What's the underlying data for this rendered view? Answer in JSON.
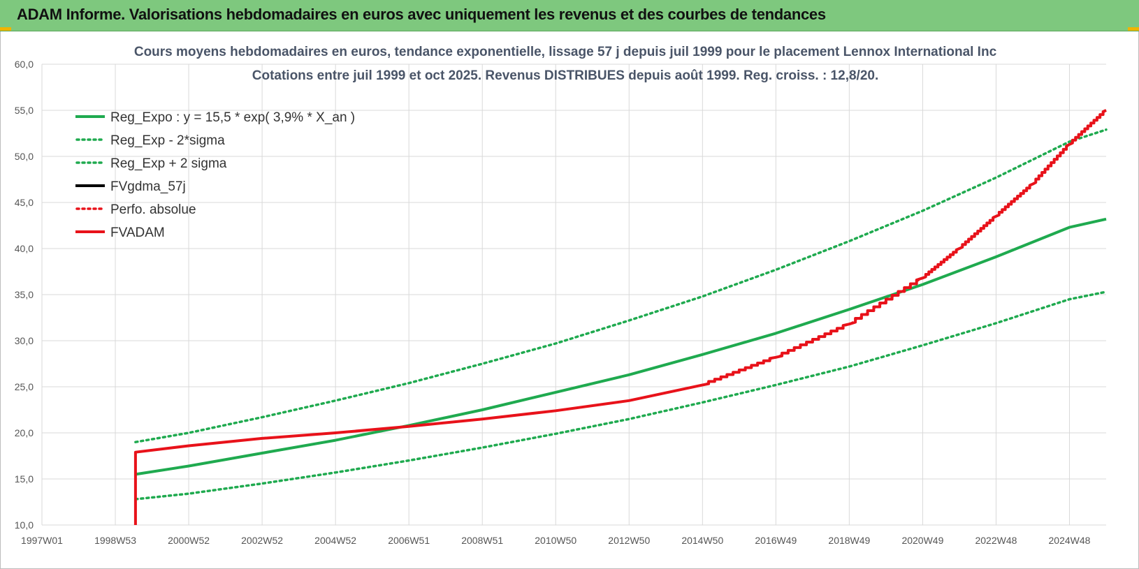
{
  "header": {
    "title": "ADAM Informe. Valorisations hebdomadaires en euros avec uniquement les revenus et des courbes de tendances"
  },
  "colors": {
    "header_bg": "#7ec87e",
    "green": "#1faa4f",
    "red": "#e8121a",
    "black": "#000000",
    "grid": "#d9d9d9"
  },
  "chart_data": {
    "type": "line",
    "title": "Cours moyens hebdomadaires en euros, tendance exponentielle, lissage 57 j depuis juil 1999 pour le placement Lennox International Inc",
    "subtitle": "Cotations entre juil 1999 et oct 2025. Revenus DISTRIBUES depuis août 1999. Reg. croiss. : 12,8/20.",
    "x_tick_labels": [
      "1997W01",
      "1998W53",
      "2000W52",
      "2002W52",
      "2004W52",
      "2006W51",
      "2008W51",
      "2010W50",
      "2012W50",
      "2014W50",
      "2016W49",
      "2018W49",
      "2020W49",
      "2022W48",
      "2024W48"
    ],
    "x_unit": "year",
    "x_range": [
      1997.0,
      2026.0
    ],
    "x_tick_years": [
      1997.0,
      1999.0,
      2001.0,
      2003.0,
      2005.0,
      2007.0,
      2009.0,
      2011.0,
      2013.0,
      2015.0,
      2017.0,
      2019.0,
      2021.0,
      2023.0,
      2025.0
    ],
    "y_tick_labels": [
      "10,0",
      "15,0",
      "20,0",
      "25,0",
      "30,0",
      "35,0",
      "40,0",
      "45,0",
      "50,0",
      "55,0",
      "60,0"
    ],
    "ylim": [
      10,
      60
    ],
    "grid": true,
    "legend_position": "top-left",
    "series": [
      {
        "name": "Reg_Expo : y = 15,5 * exp( 3,9% *  X_an )",
        "style": "solid",
        "color": "#1faa4f",
        "points": [
          [
            1999.55,
            15.5
          ],
          [
            2001,
            16.4
          ],
          [
            2003,
            17.8
          ],
          [
            2005,
            19.2
          ],
          [
            2007,
            20.8
          ],
          [
            2009,
            22.5
          ],
          [
            2011,
            24.4
          ],
          [
            2013,
            26.3
          ],
          [
            2015,
            28.5
          ],
          [
            2017,
            30.8
          ],
          [
            2019,
            33.4
          ],
          [
            2021,
            36.1
          ],
          [
            2023,
            39.1
          ],
          [
            2025,
            42.3
          ],
          [
            2026,
            43.2
          ]
        ]
      },
      {
        "name": "Reg_Exp - 2*sigma",
        "style": "dotted",
        "color": "#1faa4f",
        "points": [
          [
            1999.55,
            12.8
          ],
          [
            2001,
            13.4
          ],
          [
            2003,
            14.5
          ],
          [
            2005,
            15.7
          ],
          [
            2007,
            17.0
          ],
          [
            2009,
            18.4
          ],
          [
            2011,
            19.9
          ],
          [
            2013,
            21.5
          ],
          [
            2015,
            23.3
          ],
          [
            2017,
            25.2
          ],
          [
            2019,
            27.2
          ],
          [
            2021,
            29.5
          ],
          [
            2023,
            31.9
          ],
          [
            2025,
            34.5
          ],
          [
            2026,
            35.3
          ]
        ]
      },
      {
        "name": "Reg_Exp + 2 sigma",
        "style": "dotted",
        "color": "#1faa4f",
        "points": [
          [
            1999.55,
            19.0
          ],
          [
            2001,
            20.0
          ],
          [
            2003,
            21.7
          ],
          [
            2005,
            23.5
          ],
          [
            2007,
            25.4
          ],
          [
            2009,
            27.5
          ],
          [
            2011,
            29.7
          ],
          [
            2013,
            32.2
          ],
          [
            2015,
            34.8
          ],
          [
            2017,
            37.7
          ],
          [
            2019,
            40.8
          ],
          [
            2021,
            44.1
          ],
          [
            2023,
            47.7
          ],
          [
            2025,
            51.6
          ],
          [
            2026,
            52.9
          ]
        ]
      },
      {
        "name": "FVgdma_57j",
        "style": "solid",
        "color": "#000000",
        "points": [
          [
            1999.55,
            17.9
          ],
          [
            2001,
            18.6
          ],
          [
            2003,
            19.4
          ],
          [
            2005,
            20.0
          ],
          [
            2007,
            20.7
          ],
          [
            2009,
            21.5
          ],
          [
            2011,
            22.4
          ],
          [
            2013,
            23.5
          ],
          [
            2015,
            25.2
          ],
          [
            2017,
            28.2
          ],
          [
            2019,
            31.8
          ],
          [
            2021,
            36.8
          ],
          [
            2022,
            40.0
          ],
          [
            2023,
            43.5
          ],
          [
            2024,
            47.0
          ],
          [
            2025,
            51.3
          ],
          [
            2026,
            55.0
          ]
        ]
      },
      {
        "name": "Perfo. absolue",
        "style": "dotted",
        "color": "#e8121a",
        "points": [
          [
            1999.55,
            17.9
          ],
          [
            2001,
            18.6
          ],
          [
            2003,
            19.4
          ],
          [
            2005,
            20.0
          ],
          [
            2007,
            20.7
          ],
          [
            2009,
            21.5
          ],
          [
            2011,
            22.4
          ],
          [
            2013,
            23.5
          ],
          [
            2015,
            25.2
          ],
          [
            2017,
            28.2
          ],
          [
            2019,
            31.8
          ],
          [
            2021,
            36.8
          ],
          [
            2022,
            40.0
          ],
          [
            2023,
            43.5
          ],
          [
            2024,
            47.0
          ],
          [
            2025,
            51.3
          ],
          [
            2026,
            55.0
          ]
        ]
      },
      {
        "name": "FVADAM",
        "style": "solid",
        "color": "#e8121a",
        "points": [
          [
            1999.55,
            10.0
          ],
          [
            1999.55,
            17.9
          ],
          [
            2001,
            18.6
          ],
          [
            2003,
            19.4
          ],
          [
            2005,
            20.0
          ],
          [
            2007,
            20.7
          ],
          [
            2009,
            21.5
          ],
          [
            2011,
            22.4
          ],
          [
            2013,
            23.5
          ],
          [
            2015,
            25.2
          ],
          [
            2017,
            28.2
          ],
          [
            2019,
            31.8
          ],
          [
            2021,
            36.8
          ],
          [
            2022,
            40.0
          ],
          [
            2023,
            43.5
          ],
          [
            2024,
            47.0
          ],
          [
            2025,
            51.3
          ],
          [
            2026,
            55.0
          ]
        ]
      }
    ]
  }
}
